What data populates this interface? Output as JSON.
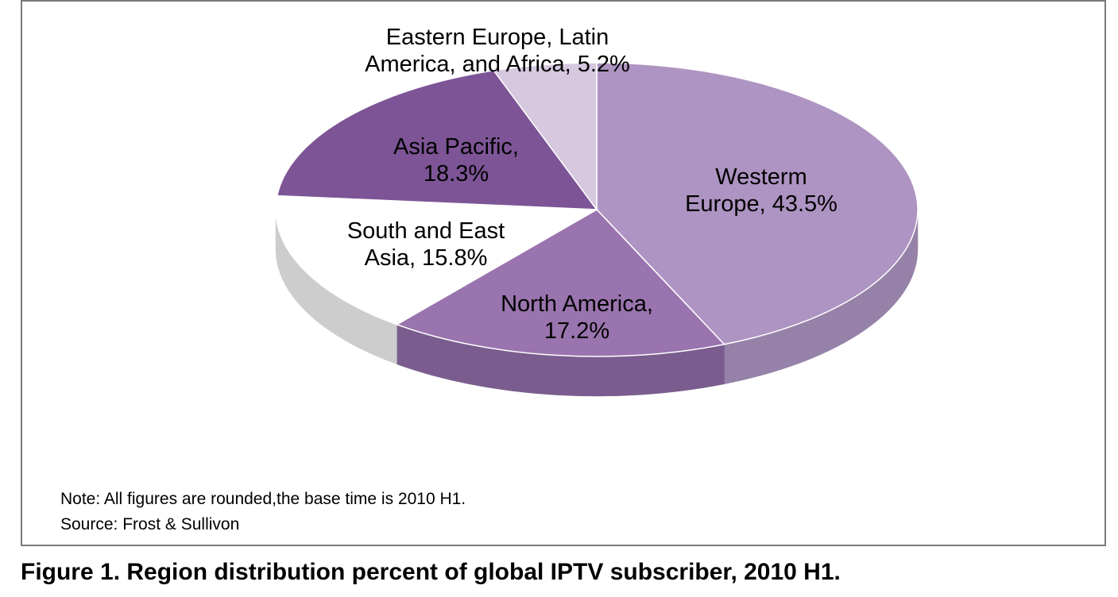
{
  "chart_data": {
    "type": "pie",
    "style": "3d",
    "title": "Figure 1. Region distribution percent of global IPTV subscriber, 2010 H1.",
    "note": "Note: All figures are rounded,the base time is 2010 H1.",
    "source": "Source: Frost & Sullivon",
    "slices": [
      {
        "label_lines": [
          "Westerm",
          "Europe, 43.5%"
        ],
        "value": 43.5,
        "color": "#ae94c2",
        "side": "#9682a8"
      },
      {
        "label_lines": [
          "North America,",
          "17.2%"
        ],
        "value": 17.2,
        "color": "#9a74ae",
        "side": "#7a5d8e"
      },
      {
        "label_lines": [
          "South and East",
          "Asia, 15.8%"
        ],
        "value": 15.8,
        "color": "#ffffff",
        "side": "#cdcdcd"
      },
      {
        "label_lines": [
          "Asia Pacific,",
          "18.3%"
        ],
        "value": 18.3,
        "color": "#7d5596",
        "side": "#6a4882"
      },
      {
        "label_lines": [
          "Eastern Europe, Latin",
          "America, and Africa, 5.2%"
        ],
        "value": 5.2,
        "color": "#d5c8df",
        "side": "#bcaec8"
      }
    ]
  }
}
